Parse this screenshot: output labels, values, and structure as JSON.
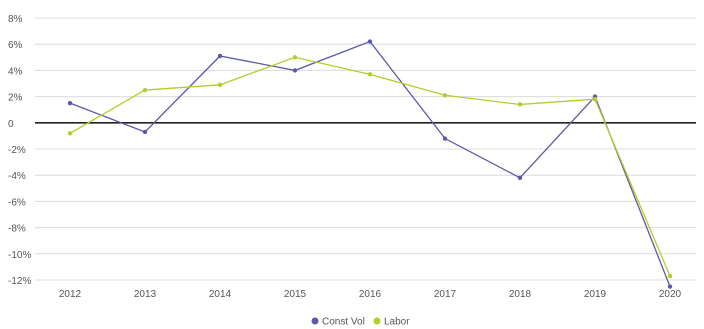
{
  "chart_data": {
    "type": "line",
    "x": [
      "2012",
      "2013",
      "2014",
      "2015",
      "2016",
      "2017",
      "2018",
      "2019",
      "2020"
    ],
    "series": [
      {
        "name": "Const Vol",
        "color": "#5c5aa8",
        "values": [
          1.5,
          -0.7,
          5.1,
          4.0,
          6.2,
          -1.2,
          -4.2,
          2.0,
          -12.5
        ]
      },
      {
        "name": "Labor",
        "color": "#b5cd2a",
        "values": [
          -0.8,
          2.5,
          2.9,
          5.0,
          3.7,
          2.1,
          1.4,
          1.8,
          -11.7
        ]
      }
    ],
    "ylim": [
      -12,
      8
    ],
    "yticks": [
      -12,
      -10,
      -8,
      -6,
      -4,
      -2,
      0,
      2,
      4,
      6,
      8
    ],
    "ytick_labels": [
      "-12%",
      "-10%",
      "-8%",
      "-6%",
      "-4%",
      "-2%",
      "0",
      "2%",
      "4%",
      "6%",
      "8%"
    ],
    "grid": true,
    "zero_line": true,
    "legend_position": "bottom-center"
  }
}
